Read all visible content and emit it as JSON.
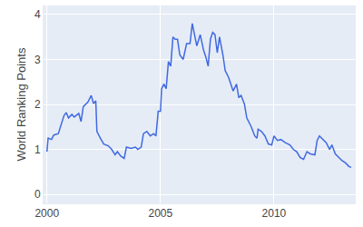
{
  "chart_data": {
    "type": "line",
    "ylabel": "World Ranking Points",
    "color": "#4169e1",
    "grid": true,
    "xlim": [
      1999.85,
      2013.6
    ],
    "xticks": [
      2000,
      2005,
      2010
    ],
    "ylim": [
      -0.2,
      4.2
    ],
    "yticks": [
      0,
      1,
      2,
      3,
      4
    ],
    "x": [
      2000.0,
      2000.05,
      2000.2,
      2000.3,
      2000.5,
      2000.6,
      2000.75,
      2000.85,
      2000.95,
      2001.1,
      2001.2,
      2001.4,
      2001.5,
      2001.6,
      2001.8,
      2001.95,
      2002.05,
      2002.15,
      2002.2,
      2002.35,
      2002.5,
      2002.7,
      2002.85,
      2003.0,
      2003.1,
      2003.25,
      2003.4,
      2003.5,
      2003.7,
      2003.9,
      2004.0,
      2004.15,
      2004.25,
      2004.4,
      2004.55,
      2004.7,
      2004.8,
      2004.9,
      2005.0,
      2005.05,
      2005.15,
      2005.25,
      2005.35,
      2005.45,
      2005.55,
      2005.65,
      2005.75,
      2005.85,
      2006.0,
      2006.15,
      2006.3,
      2006.4,
      2006.5,
      2006.6,
      2006.75,
      2006.9,
      2007.0,
      2007.1,
      2007.2,
      2007.3,
      2007.4,
      2007.5,
      2007.6,
      2007.75,
      2007.85,
      2008.0,
      2008.1,
      2008.2,
      2008.35,
      2008.45,
      2008.55,
      2008.7,
      2008.8,
      2009.0,
      2009.15,
      2009.25,
      2009.3,
      2009.45,
      2009.6,
      2009.75,
      2009.9,
      2010.0,
      2010.15,
      2010.3,
      2010.5,
      2010.7,
      2010.85,
      2011.0,
      2011.15,
      2011.3,
      2011.45,
      2011.6,
      2011.8,
      2011.9,
      2012.0,
      2012.15,
      2012.3,
      2012.45,
      2012.55,
      2012.7,
      2012.85,
      2013.0,
      2013.15,
      2013.3,
      2013.4
    ],
    "values": [
      0.95,
      1.25,
      1.22,
      1.32,
      1.35,
      1.5,
      1.75,
      1.82,
      1.7,
      1.78,
      1.72,
      1.8,
      1.62,
      1.95,
      2.05,
      2.2,
      2.02,
      2.08,
      1.4,
      1.25,
      1.12,
      1.08,
      1.0,
      0.88,
      0.95,
      0.85,
      0.8,
      1.05,
      1.02,
      1.05,
      1.0,
      1.05,
      1.35,
      1.4,
      1.3,
      1.35,
      1.3,
      1.85,
      1.85,
      2.35,
      2.45,
      2.35,
      2.95,
      2.85,
      3.5,
      3.45,
      3.45,
      3.1,
      3.0,
      3.35,
      3.35,
      3.8,
      3.55,
      3.3,
      3.55,
      3.2,
      3.05,
      2.85,
      3.45,
      3.6,
      3.55,
      3.15,
      3.5,
      3.1,
      2.75,
      2.6,
      2.45,
      2.3,
      2.45,
      2.15,
      2.2,
      2.0,
      1.7,
      1.5,
      1.3,
      1.25,
      1.45,
      1.4,
      1.3,
      1.12,
      1.1,
      1.3,
      1.2,
      1.22,
      1.15,
      1.1,
      1.0,
      0.95,
      0.82,
      0.78,
      0.95,
      0.9,
      0.88,
      1.2,
      1.3,
      1.22,
      1.15,
      1.0,
      1.1,
      0.9,
      0.82,
      0.75,
      0.7,
      0.62,
      0.6
    ]
  }
}
